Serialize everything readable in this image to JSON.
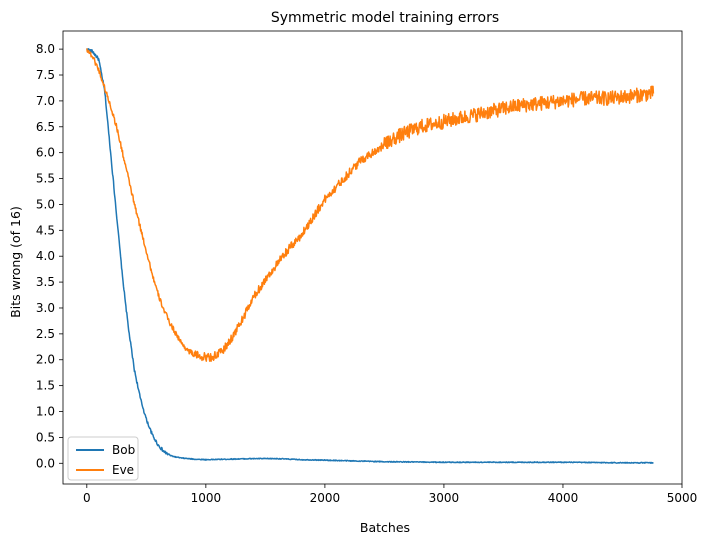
{
  "chart_data": {
    "type": "line",
    "title": "Symmetric model training errors",
    "xlabel": "Batches",
    "ylabel": "Bits wrong (of 16)",
    "xlim": [
      -200,
      5000
    ],
    "ylim": [
      -0.4,
      8.35
    ],
    "xticks": [
      0,
      1000,
      2000,
      3000,
      4000,
      5000
    ],
    "yticks": [
      0.0,
      0.5,
      1.0,
      1.5,
      2.0,
      2.5,
      3.0,
      3.5,
      4.0,
      4.5,
      5.0,
      5.5,
      6.0,
      6.5,
      7.0,
      7.5,
      8.0
    ],
    "xtick_labels": [
      "0",
      "1000",
      "2000",
      "3000",
      "4000",
      "5000"
    ],
    "ytick_labels": [
      "0.0",
      "0.5",
      "1.0",
      "1.5",
      "2.0",
      "2.5",
      "3.0",
      "3.5",
      "4.0",
      "4.5",
      "5.0",
      "5.5",
      "6.0",
      "6.5",
      "7.0",
      "7.5",
      "8.0"
    ],
    "grid": false,
    "legend_position": "bottom-left",
    "series": [
      {
        "name": "Bob",
        "color": "#1f77b4",
        "x": [
          0,
          50,
          100,
          150,
          200,
          250,
          300,
          350,
          400,
          450,
          500,
          550,
          600,
          650,
          700,
          750,
          800,
          900,
          1000,
          1200,
          1400,
          1600,
          1800,
          2000,
          2500,
          3000,
          3500,
          4000,
          4500,
          4760
        ],
        "y": [
          8.0,
          7.95,
          7.8,
          7.2,
          6.0,
          4.8,
          3.6,
          2.6,
          1.8,
          1.25,
          0.85,
          0.55,
          0.35,
          0.22,
          0.15,
          0.12,
          0.1,
          0.08,
          0.07,
          0.08,
          0.09,
          0.09,
          0.07,
          0.06,
          0.03,
          0.02,
          0.02,
          0.02,
          0.01,
          0.01
        ]
      },
      {
        "name": "Eve",
        "color": "#ff7f0e",
        "x": [
          0,
          50,
          100,
          150,
          200,
          250,
          300,
          350,
          400,
          450,
          500,
          550,
          600,
          650,
          700,
          750,
          800,
          850,
          900,
          950,
          1000,
          1050,
          1100,
          1150,
          1200,
          1300,
          1400,
          1500,
          1600,
          1700,
          1800,
          1900,
          2000,
          2100,
          2200,
          2300,
          2400,
          2500,
          2600,
          2700,
          2800,
          3000,
          3200,
          3400,
          3600,
          3800,
          4000,
          4200,
          4400,
          4600,
          4760
        ],
        "y": [
          8.0,
          7.85,
          7.6,
          7.25,
          6.9,
          6.5,
          6.0,
          5.5,
          5.0,
          4.55,
          4.1,
          3.65,
          3.25,
          2.95,
          2.7,
          2.5,
          2.3,
          2.18,
          2.1,
          2.07,
          2.05,
          2.05,
          2.1,
          2.2,
          2.35,
          2.75,
          3.2,
          3.55,
          3.85,
          4.15,
          4.4,
          4.75,
          5.1,
          5.35,
          5.6,
          5.85,
          6.0,
          6.15,
          6.3,
          6.4,
          6.5,
          6.6,
          6.7,
          6.8,
          6.9,
          6.95,
          7.0,
          7.05,
          7.05,
          7.1,
          7.15
        ]
      }
    ]
  }
}
